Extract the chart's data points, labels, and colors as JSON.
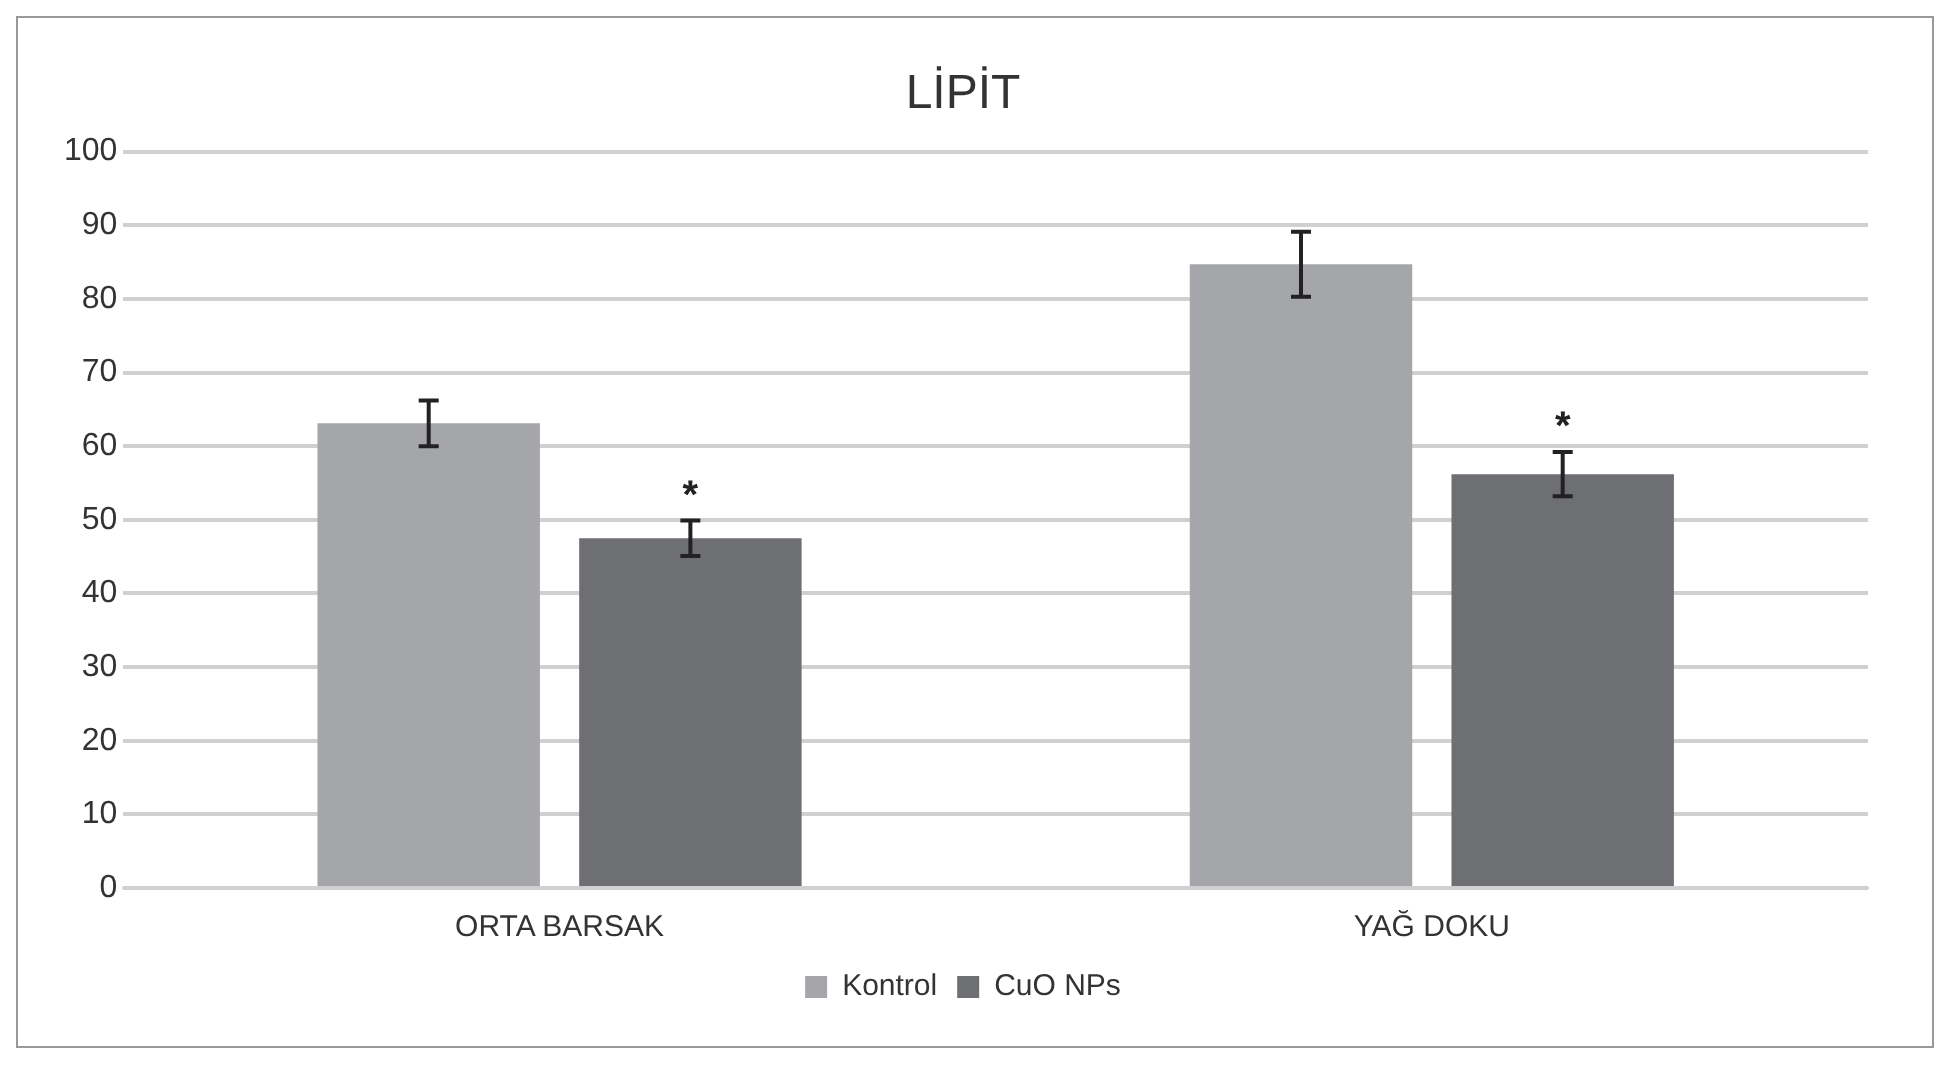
{
  "chart_data": {
    "type": "bar",
    "title": "LİPİT",
    "categories": [
      "ORTA BARSAK",
      "YAĞ DOKU"
    ],
    "series": [
      {
        "name": "Kontrol",
        "color": "#a5a6a9",
        "values": [
          63.1,
          84.7
        ],
        "errors": [
          3.1,
          4.4
        ]
      },
      {
        "name": "CuO NPs",
        "color": "#6e6f73",
        "values": [
          47.5,
          56.2
        ],
        "errors": [
          2.4,
          3
        ]
      }
    ],
    "ylim": [
      0,
      100
    ],
    "yticks": [
      0,
      10,
      20,
      30,
      40,
      50,
      60,
      70,
      80,
      90,
      100
    ],
    "grid": "y",
    "legend": "bottom",
    "annotations": [
      "*",
      "*"
    ]
  }
}
